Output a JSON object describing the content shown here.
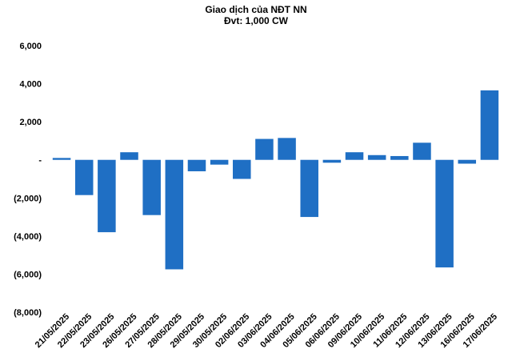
{
  "chart_data": {
    "type": "bar",
    "title": "Giao dịch của NĐT NN",
    "subtitle": "Đvt: 1,000 CW",
    "xlabel": "",
    "ylabel": "",
    "ylim": [
      -8000,
      6000
    ],
    "yticks": [
      6000,
      4000,
      2000,
      0,
      -2000,
      -4000,
      -6000,
      -8000
    ],
    "ytick_labels": [
      "6,000",
      "4,000",
      "2,000",
      "-",
      "(2,000)",
      "(4,000)",
      "(6,000)",
      "(8,000)"
    ],
    "grid": false,
    "legend": "none",
    "bar_color": "#1f6fc4",
    "categories": [
      "21/05/2025",
      "22/05/2025",
      "23/05/2025",
      "26/05/2025",
      "27/05/2025",
      "28/05/2025",
      "29/05/2025",
      "30/05/2025",
      "02/06/2025",
      "03/06/2025",
      "04/06/2025",
      "05/06/2025",
      "06/06/2025",
      "09/06/2025",
      "10/06/2025",
      "11/06/2025",
      "12/06/2025",
      "13/06/2025",
      "16/06/2025",
      "17/06/2025"
    ],
    "values": [
      100,
      -1850,
      -3800,
      400,
      -2900,
      -5750,
      -600,
      -250,
      -1000,
      1100,
      1150,
      -3000,
      -150,
      400,
      250,
      200,
      900,
      -5650,
      -200,
      3650
    ]
  }
}
